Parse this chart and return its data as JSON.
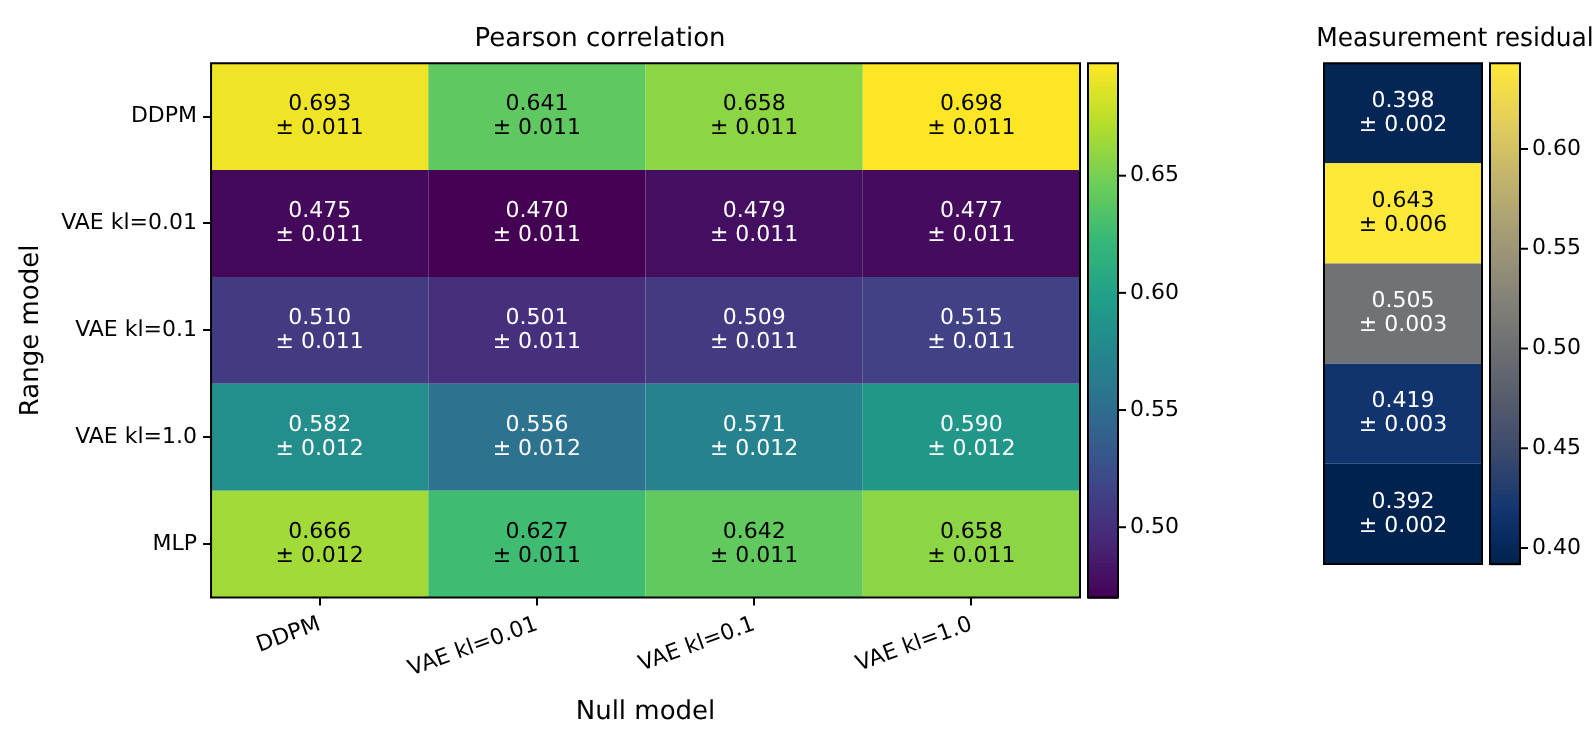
{
  "chart_data": [
    {
      "type": "heatmap",
      "title": "Pearson correlation",
      "xlabel": "Null model",
      "ylabel": "Range model",
      "categories": [
        "DDPM",
        "VAE kl=0.01",
        "VAE kl=0.1",
        "VAE kl=1.0"
      ],
      "y_categories": [
        "DDPM",
        "VAE kl=0.01",
        "VAE kl=0.1",
        "VAE kl=1.0",
        "MLP"
      ],
      "cells": [
        [
          0.693,
          0.641,
          0.658,
          0.698
        ],
        [
          0.475,
          0.47,
          0.479,
          0.477
        ],
        [
          0.51,
          0.501,
          0.509,
          0.515
        ],
        [
          0.582,
          0.556,
          0.571,
          0.59
        ],
        [
          0.666,
          0.627,
          0.642,
          0.658
        ]
      ],
      "cell_labels": [
        [
          "0.693\n± 0.011",
          "0.641\n± 0.011",
          "0.658\n± 0.011",
          "0.698\n± 0.011"
        ],
        [
          "0.475\n± 0.011",
          "0.470\n± 0.011",
          "0.479\n± 0.011",
          "0.477\n± 0.011"
        ],
        [
          "0.510\n± 0.011",
          "0.501\n± 0.011",
          "0.509\n± 0.011",
          "0.515\n± 0.011"
        ],
        [
          "0.582\n± 0.012",
          "0.556\n± 0.012",
          "0.571\n± 0.012",
          "0.590\n± 0.012"
        ],
        [
          "0.666\n± 0.012",
          "0.627\n± 0.011",
          "0.642\n± 0.011",
          "0.658\n± 0.011"
        ]
      ],
      "clim": [
        0.47,
        0.698
      ],
      "cticks": [
        {
          "value": 0.5,
          "label": "0.50"
        },
        {
          "value": 0.55,
          "label": "0.55"
        },
        {
          "value": 0.6,
          "label": "0.60"
        },
        {
          "value": 0.65,
          "label": "0.65"
        }
      ]
    },
    {
      "type": "heatmap",
      "title": "Measurement residual",
      "categories": [
        null
      ],
      "y_categories": [
        null,
        null,
        null,
        null,
        null
      ],
      "cells": [
        [
          0.398
        ],
        [
          0.643
        ],
        [
          0.505
        ],
        [
          0.419
        ],
        [
          0.392
        ]
      ],
      "cell_labels": [
        [
          "0.398\n± 0.002"
        ],
        [
          "0.643\n± 0.006"
        ],
        [
          "0.505\n± 0.003"
        ],
        [
          "0.419\n± 0.003"
        ],
        [
          "0.392\n± 0.002"
        ]
      ],
      "clim": [
        0.392,
        0.643
      ],
      "cticks": [
        {
          "value": 0.4,
          "label": "0.40"
        },
        {
          "value": 0.45,
          "label": "0.45"
        },
        {
          "value": 0.5,
          "label": "0.50"
        },
        {
          "value": 0.55,
          "label": "0.55"
        },
        {
          "value": 0.6,
          "label": "0.60"
        }
      ]
    }
  ]
}
